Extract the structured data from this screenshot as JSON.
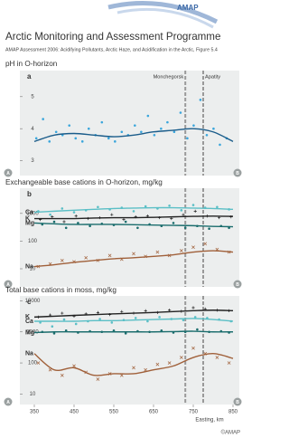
{
  "logo": "AMAP",
  "title": "Arctic Monitoring and Assessment Programme",
  "subtitle": "AMAP Assessment 2006: Acidifying Pollutants, Arctic Haze, and Acidification in the Arctic, Figure 5.4",
  "copyright": "©AMAP",
  "chart_data": [
    {
      "type": "scatter",
      "title": "pH in O-horizon",
      "panel": "a",
      "corner_labels": [
        "A",
        "B"
      ],
      "log": false,
      "xlim": [
        350,
        850
      ],
      "ylim": [
        2.65,
        5.7
      ],
      "yticks": [
        3,
        4,
        5
      ],
      "vlines": [
        730,
        775
      ],
      "vline_labels": [
        "Monchegorsk",
        "Apatity"
      ],
      "series": [
        {
          "color": "#3ba6dc",
          "trend_color": "#1a5c8a",
          "marker": "dot",
          "x": [
            355,
            372,
            388,
            405,
            421,
            438,
            454,
            471,
            487,
            504,
            520,
            537,
            553,
            570,
            586,
            603,
            619,
            636,
            652,
            669,
            685,
            702,
            718,
            735,
            751,
            768,
            784,
            801,
            817,
            834
          ],
          "values": [
            3.7,
            4.3,
            3.6,
            3.9,
            3.8,
            4.1,
            3.7,
            3.6,
            4.0,
            3.8,
            4.2,
            3.7,
            3.6,
            3.9,
            3.8,
            4.1,
            3.9,
            4.4,
            3.8,
            4.0,
            4.2,
            3.9,
            4.5,
            3.7,
            4.1,
            4.9,
            3.8,
            4.0,
            3.5,
            3.7
          ],
          "trend_x": [
            350,
            400,
            450,
            500,
            550,
            600,
            650,
            700,
            750,
            800,
            850
          ],
          "trend_values": [
            3.6,
            3.8,
            3.85,
            3.8,
            3.75,
            3.8,
            3.9,
            3.95,
            4.0,
            3.9,
            3.6
          ]
        }
      ]
    },
    {
      "type": "scatter",
      "title": "Exchangeable base cations in O-horizon, mg/kg",
      "panel": "b",
      "corner_labels": [
        "A",
        "B"
      ],
      "log": true,
      "xlim": [
        350,
        850
      ],
      "ylim": [
        3,
        6000
      ],
      "yticks": [
        10,
        100,
        1000
      ],
      "vlines": [
        730,
        775
      ],
      "series": [
        {
          "name": "Ca",
          "color": "#5bbfc6",
          "marker": "dot",
          "x": [
            360,
            390,
            420,
            450,
            480,
            510,
            540,
            570,
            600,
            630,
            660,
            690,
            720,
            750,
            780,
            810,
            840
          ],
          "values": [
            1200,
            900,
            1500,
            1100,
            1300,
            1700,
            1400,
            1600,
            1200,
            1800,
            1500,
            1900,
            1300,
            2000,
            1600,
            1700,
            1400
          ],
          "trend_x": [
            350,
            400,
            450,
            500,
            550,
            600,
            650,
            700,
            750,
            800,
            850
          ],
          "trend_values": [
            1100,
            1200,
            1300,
            1400,
            1500,
            1550,
            1600,
            1600,
            1550,
            1500,
            1400
          ]
        },
        {
          "name": "K",
          "color": "#222222",
          "marker": "plus",
          "x": [
            365,
            395,
            425,
            455,
            485,
            515,
            545,
            575,
            605,
            635,
            665,
            695,
            725,
            755,
            785,
            815,
            845
          ],
          "values": [
            600,
            750,
            500,
            800,
            650,
            700,
            900,
            600,
            750,
            800,
            700,
            650,
            900,
            1200,
            800,
            700,
            750
          ],
          "trend_x": [
            350,
            400,
            450,
            500,
            550,
            600,
            650,
            700,
            750,
            800,
            850
          ],
          "trend_values": [
            650,
            650,
            650,
            680,
            700,
            700,
            720,
            750,
            780,
            800,
            780
          ]
        },
        {
          "name": "Mg",
          "color": "#1b6d6d",
          "marker": "dot",
          "x": [
            370,
            400,
            430,
            460,
            490,
            520,
            550,
            580,
            610,
            640,
            670,
            700,
            730,
            760,
            790,
            820,
            840
          ],
          "values": [
            400,
            500,
            300,
            450,
            350,
            420,
            380,
            500,
            300,
            400,
            350,
            450,
            300,
            350,
            280,
            350,
            300
          ],
          "trend_x": [
            350,
            400,
            450,
            500,
            550,
            600,
            650,
            700,
            750,
            800,
            850
          ],
          "trend_values": [
            450,
            420,
            400,
            400,
            400,
            390,
            380,
            370,
            360,
            340,
            330
          ]
        },
        {
          "name": "Na",
          "color": "#a0603a",
          "marker": "cross",
          "x": [
            360,
            390,
            420,
            450,
            480,
            510,
            540,
            570,
            600,
            630,
            660,
            690,
            720,
            750,
            780,
            810,
            840
          ],
          "values": [
            12,
            15,
            20,
            18,
            25,
            20,
            30,
            22,
            35,
            28,
            40,
            30,
            45,
            60,
            80,
            50,
            40
          ],
          "trend_x": [
            350,
            400,
            450,
            500,
            550,
            600,
            650,
            700,
            750,
            800,
            850
          ],
          "trend_values": [
            12,
            14,
            17,
            20,
            23,
            25,
            28,
            32,
            40,
            45,
            40
          ]
        }
      ]
    },
    {
      "type": "scatter",
      "title": "Total base cations in moss, mg/kg",
      "panel": "c",
      "corner_labels": [
        "A",
        "B"
      ],
      "log": true,
      "xlim": [
        350,
        850
      ],
      "ylim": [
        6,
        11000
      ],
      "yticks": [
        10,
        100,
        1000,
        10000
      ],
      "xticks": [
        350,
        450,
        550,
        650,
        750,
        850
      ],
      "xlabel": "Easting, km",
      "vlines": [
        730,
        775
      ],
      "series": [
        {
          "name": "K",
          "color": "#222222",
          "marker": "plus",
          "x": [
            360,
            390,
            420,
            450,
            480,
            510,
            540,
            570,
            600,
            630,
            660,
            690,
            720,
            750,
            780,
            810,
            840
          ],
          "values": [
            3000,
            3500,
            4000,
            3200,
            3800,
            4200,
            3600,
            4500,
            4000,
            4800,
            4200,
            5000,
            4600,
            6000,
            5500,
            5000,
            4800
          ],
          "trend_x": [
            350,
            400,
            450,
            500,
            550,
            600,
            650,
            700,
            750,
            800,
            850
          ],
          "trend_values": [
            3000,
            3200,
            3400,
            3600,
            3800,
            4000,
            4200,
            4500,
            4800,
            5000,
            4800
          ]
        },
        {
          "name": "Ca",
          "color": "#5bbfc6",
          "marker": "dot",
          "x": [
            365,
            395,
            425,
            455,
            485,
            515,
            545,
            575,
            605,
            635,
            665,
            695,
            725,
            755,
            785,
            815,
            845
          ],
          "values": [
            2000,
            1500,
            2500,
            1800,
            2200,
            2600,
            2000,
            2400,
            2800,
            2200,
            3000,
            2600,
            2400,
            3000,
            2800,
            2500,
            2200
          ],
          "trend_x": [
            350,
            400,
            450,
            500,
            550,
            600,
            650,
            700,
            750,
            800,
            850
          ],
          "trend_values": [
            2200,
            2200,
            2200,
            2300,
            2300,
            2400,
            2500,
            2600,
            2700,
            2500,
            2200
          ]
        },
        {
          "name": "Mg",
          "color": "#1b6d6d",
          "marker": "dot",
          "x": [
            370,
            400,
            430,
            460,
            490,
            520,
            550,
            580,
            610,
            640,
            670,
            700,
            730,
            760,
            790,
            820,
            840
          ],
          "values": [
            1000,
            900,
            1100,
            950,
            1050,
            1000,
            1100,
            900,
            1050,
            1000,
            1100,
            950,
            1000,
            1200,
            1000,
            1050,
            950
          ],
          "trend_x": [
            350,
            400,
            450,
            500,
            550,
            600,
            650,
            700,
            750,
            800,
            850
          ],
          "trend_values": [
            950,
            1000,
            1000,
            1000,
            1000,
            1000,
            1000,
            1020,
            1050,
            1000,
            1000
          ]
        },
        {
          "name": "Na",
          "color": "#a0603a",
          "marker": "cross",
          "x": [
            360,
            390,
            420,
            450,
            480,
            510,
            540,
            570,
            600,
            630,
            660,
            690,
            720,
            750,
            780,
            810,
            840
          ],
          "values": [
            100,
            60,
            40,
            80,
            50,
            30,
            45,
            40,
            70,
            60,
            90,
            100,
            150,
            300,
            200,
            150,
            100
          ],
          "trend_x": [
            350,
            400,
            450,
            500,
            550,
            600,
            650,
            700,
            750,
            800,
            850
          ],
          "trend_values": [
            200,
            60,
            70,
            40,
            45,
            45,
            60,
            80,
            150,
            200,
            140
          ]
        }
      ]
    }
  ]
}
